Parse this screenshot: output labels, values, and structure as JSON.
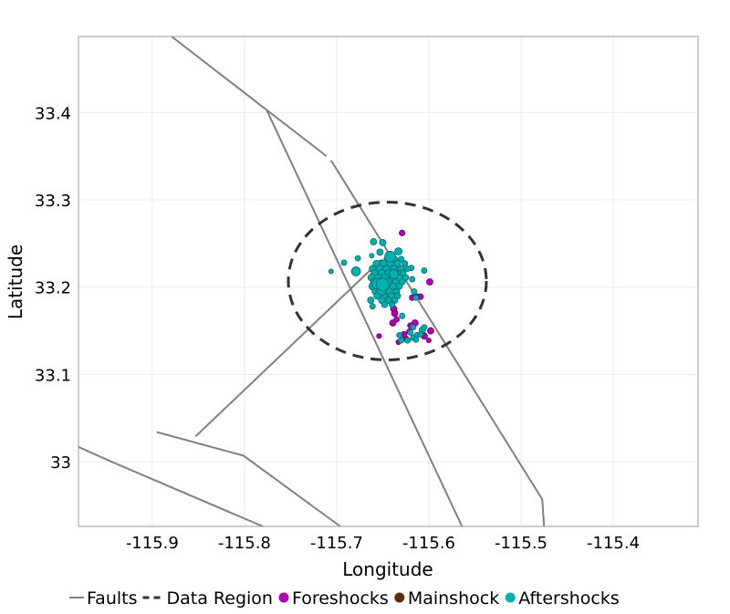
{
  "chart_data": {
    "type": "scatter",
    "title": "",
    "xlabel": "Longitude",
    "ylabel": "Latitude",
    "xlim": [
      -115.98,
      -115.308
    ],
    "ylim": [
      32.926,
      33.487
    ],
    "grid": true,
    "legend_position": "bottom",
    "x_ticks": [
      -115.9,
      -115.8,
      -115.7,
      -115.6,
      -115.5,
      -115.4
    ],
    "x_tick_labels": [
      "-115.9",
      "-115.8",
      "-115.7",
      "-115.6",
      "-115.5",
      "-115.4"
    ],
    "y_ticks": [
      33.0,
      33.1,
      33.2,
      33.3,
      33.4
    ],
    "y_tick_labels": [
      "33",
      "33.1",
      "33.2",
      "33.3",
      "33.4"
    ],
    "legend": [
      {
        "label": "Faults",
        "kind": "line",
        "color": "#808080"
      },
      {
        "label": "Data Region",
        "kind": "dashed",
        "color": "#333333"
      },
      {
        "label": "Foreshocks",
        "kind": "point",
        "color": "#b000b0"
      },
      {
        "label": "Mainshock",
        "kind": "point",
        "color": "#5a2d0c"
      },
      {
        "label": "Aftershocks",
        "kind": "point",
        "color": "#00b0b0"
      }
    ],
    "colors": {
      "faults": "#808080",
      "region": "#333333",
      "foreshocks": "#b000b0",
      "foreshocks_edge": "#6a006a",
      "aftershocks": "#00b0b0",
      "aftershocks_edge": "#006a6a",
      "mainshock": "#5a2d0c"
    },
    "faults": [
      [
        [
          -115.879,
          33.487
        ],
        [
          -115.776,
          33.403
        ],
        [
          -115.711,
          33.35
        ]
      ],
      [
        [
          -115.706,
          33.345
        ],
        [
          -115.477,
          32.957
        ],
        [
          -115.475,
          32.926
        ]
      ],
      [
        [
          -115.776,
          33.403
        ],
        [
          -115.564,
          32.926
        ]
      ],
      [
        [
          -115.853,
          33.029
        ],
        [
          -115.661,
          33.222
        ]
      ],
      [
        [
          -115.895,
          33.034
        ],
        [
          -115.801,
          33.007
        ],
        [
          -115.696,
          32.926
        ]
      ],
      [
        [
          -115.98,
          33.017
        ],
        [
          -115.944,
          33.0
        ],
        [
          -115.78,
          32.926
        ]
      ]
    ],
    "data_region": {
      "center": [
        -115.645,
        33.207
      ],
      "radius_lon": 0.1074,
      "radius_lat": 0.0903
    },
    "foreshocks": [
      [
        -115.629,
        33.262,
        2.3
      ],
      [
        -115.599,
        33.206,
        2.5
      ],
      [
        -115.618,
        33.188,
        2.3
      ],
      [
        -115.613,
        33.189,
        2.3
      ],
      [
        -115.609,
        33.189,
        2.3
      ],
      [
        -115.638,
        33.175,
        2.5
      ],
      [
        -115.637,
        33.17,
        2.5
      ],
      [
        -115.635,
        33.163,
        2.2
      ],
      [
        -115.639,
        33.159,
        2.5
      ],
      [
        -115.654,
        33.144,
        2.0
      ],
      [
        -115.615,
        33.159,
        2.5
      ],
      [
        -115.62,
        33.156,
        2.2
      ],
      [
        -115.598,
        33.15,
        2.5
      ],
      [
        -115.6,
        33.139,
        1.9
      ],
      [
        -115.633,
        33.137,
        2.0
      ],
      [
        -115.625,
        33.141,
        2.3
      ],
      [
        -115.605,
        33.144,
        2.5
      ],
      [
        -115.627,
        33.146,
        2.3
      ],
      [
        -115.621,
        33.149,
        2.3
      ]
    ],
    "mainshock": [],
    "aftershocks": [
      [
        -115.706,
        33.218,
        1.9
      ],
      [
        -115.692,
        33.228,
        2.2
      ],
      [
        -115.679,
        33.218,
        3.4
      ],
      [
        -115.677,
        33.233,
        2.2
      ],
      [
        -115.66,
        33.252,
        2.5
      ],
      [
        -115.65,
        33.251,
        2.5
      ],
      [
        -115.662,
        33.236,
        1.9
      ],
      [
        -115.653,
        33.24,
        2.5
      ],
      [
        -115.633,
        33.241,
        2.8
      ],
      [
        -115.619,
        33.222,
        2.2
      ],
      [
        -115.605,
        33.219,
        2.2
      ],
      [
        -115.652,
        33.228,
        2.2
      ],
      [
        -115.618,
        33.209,
        2.2
      ],
      [
        -115.663,
        33.185,
        2.5
      ],
      [
        -115.661,
        33.178,
        2.2
      ],
      [
        -115.629,
        33.167,
        2.2
      ],
      [
        -115.616,
        33.195,
        2.2
      ],
      [
        -115.614,
        33.188,
        2.2
      ],
      [
        -115.62,
        33.148,
        2.2
      ],
      [
        -115.617,
        33.154,
        2.2
      ],
      [
        -115.613,
        33.145,
        2.2
      ],
      [
        -115.607,
        33.151,
        2.5
      ],
      [
        -115.63,
        33.139,
        2.2
      ],
      [
        -115.623,
        33.139,
        2.2
      ],
      [
        -115.617,
        33.142,
        2.2
      ],
      [
        -115.609,
        33.146,
        2.2
      ],
      [
        -115.614,
        33.14,
        2.2
      ],
      [
        -115.605,
        33.154,
        2.2
      ],
      [
        -115.632,
        33.145,
        2.2
      ],
      [
        -115.645,
        33.232,
        2.6
      ],
      [
        -115.637,
        33.232,
        2.4
      ],
      [
        -115.63,
        33.232,
        2.3
      ],
      [
        -115.657,
        33.227,
        2.5
      ],
      [
        -115.649,
        33.227,
        2.8
      ],
      [
        -115.642,
        33.227,
        2.6
      ],
      [
        -115.634,
        33.227,
        2.5
      ],
      [
        -115.626,
        33.227,
        2.3
      ],
      [
        -115.661,
        33.221,
        2.6
      ],
      [
        -115.653,
        33.221,
        2.8
      ],
      [
        -115.646,
        33.221,
        2.7
      ],
      [
        -115.638,
        33.221,
        2.6
      ],
      [
        -115.63,
        33.221,
        2.5
      ],
      [
        -115.623,
        33.221,
        2.2
      ],
      [
        -115.659,
        33.216,
        2.7
      ],
      [
        -115.651,
        33.216,
        2.8
      ],
      [
        -115.644,
        33.216,
        2.6
      ],
      [
        -115.636,
        33.216,
        2.7
      ],
      [
        -115.628,
        33.216,
        2.4
      ],
      [
        -115.662,
        33.211,
        2.8
      ],
      [
        -115.655,
        33.211,
        2.7
      ],
      [
        -115.648,
        33.211,
        2.9
      ],
      [
        -115.64,
        33.211,
        2.6
      ],
      [
        -115.632,
        33.211,
        2.5
      ],
      [
        -115.625,
        33.211,
        2.3
      ],
      [
        -115.659,
        33.206,
        2.9
      ],
      [
        -115.651,
        33.206,
        2.8
      ],
      [
        -115.644,
        33.206,
        2.7
      ],
      [
        -115.636,
        33.206,
        2.6
      ],
      [
        -115.629,
        33.206,
        2.4
      ],
      [
        -115.661,
        33.201,
        2.8
      ],
      [
        -115.654,
        33.201,
        2.7
      ],
      [
        -115.647,
        33.201,
        2.8
      ],
      [
        -115.639,
        33.201,
        2.6
      ],
      [
        -115.632,
        33.201,
        2.4
      ],
      [
        -115.658,
        33.195,
        2.6
      ],
      [
        -115.65,
        33.195,
        2.8
      ],
      [
        -115.643,
        33.195,
        2.7
      ],
      [
        -115.635,
        33.195,
        2.5
      ],
      [
        -115.656,
        33.19,
        2.6
      ],
      [
        -115.649,
        33.19,
        2.7
      ],
      [
        -115.641,
        33.19,
        2.6
      ],
      [
        -115.634,
        33.19,
        2.4
      ],
      [
        -115.651,
        33.185,
        2.6
      ],
      [
        -115.644,
        33.185,
        2.5
      ],
      [
        -115.637,
        33.185,
        2.4
      ],
      [
        -115.648,
        33.18,
        2.4
      ],
      [
        -115.64,
        33.18,
        2.3
      ],
      [
        -115.642,
        33.235,
        4.0
      ],
      [
        -115.638,
        33.215,
        3.4
      ],
      [
        -115.651,
        33.196,
        3.4
      ],
      [
        -115.656,
        33.204,
        4.0
      ],
      [
        -115.65,
        33.203,
        4.7
      ]
    ]
  }
}
